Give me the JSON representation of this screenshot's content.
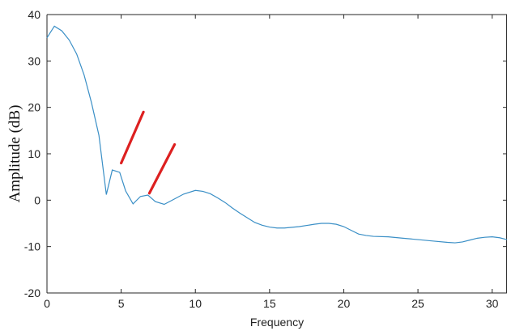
{
  "chart_data": {
    "type": "line",
    "title": "",
    "xlabel": "Frequency",
    "ylabel": "Amplitude (dB)",
    "xlim": [
      0,
      31
    ],
    "ylim": [
      -20,
      40
    ],
    "x_ticks": [
      0,
      5,
      10,
      15,
      20,
      25,
      30
    ],
    "y_ticks": [
      -20,
      -10,
      0,
      10,
      20,
      30,
      40
    ],
    "grid": false,
    "series": [
      {
        "color": "#3a8fc6",
        "x": [
          0,
          0.5,
          1,
          1.5,
          2,
          2.5,
          3,
          3.5,
          4,
          4.4,
          4.9,
          5.3,
          5.8,
          6.3,
          6.8,
          7.3,
          7.9,
          8.5,
          9.2,
          10,
          10.5,
          11,
          11.5,
          12,
          12.5,
          13,
          13.5,
          14,
          14.5,
          15,
          15.5,
          16,
          17,
          18,
          18.5,
          19,
          19.5,
          20,
          20.5,
          21,
          21.5,
          22,
          23,
          24,
          25,
          26,
          27,
          27.5,
          28,
          28.5,
          29,
          29.5,
          30,
          30.5,
          31
        ],
        "y": [
          35,
          37.5,
          36.5,
          34.5,
          31.5,
          27,
          21,
          14,
          1.2,
          6.5,
          6,
          2,
          -0.8,
          0.8,
          1.1,
          -0.3,
          -0.9,
          0.1,
          1.3,
          2.1,
          1.9,
          1.4,
          0.5,
          -0.5,
          -1.7,
          -2.8,
          -3.8,
          -4.8,
          -5.4,
          -5.8,
          -6,
          -6,
          -5.7,
          -5.2,
          -5,
          -5,
          -5.2,
          -5.7,
          -6.5,
          -7.3,
          -7.6,
          -7.8,
          -7.9,
          -8.2,
          -8.5,
          -8.8,
          -9.1,
          -9.2,
          -9,
          -8.6,
          -8.2,
          -8,
          -7.9,
          -8.1,
          -8.5
        ]
      }
    ],
    "annotations": [
      {
        "type": "red-stroke",
        "color": "#dd2020",
        "x1": 5.0,
        "y1": 8.0,
        "x2": 6.5,
        "y2": 19.0
      },
      {
        "type": "red-stroke",
        "color": "#dd2020",
        "x1": 6.9,
        "y1": 1.5,
        "x2": 8.6,
        "y2": 12.0
      }
    ],
    "axis_color": "#262626"
  }
}
